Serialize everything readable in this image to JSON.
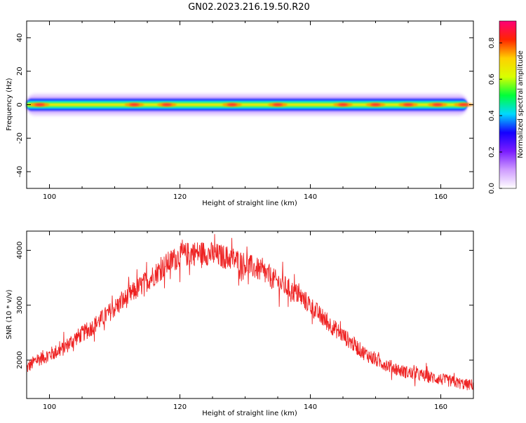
{
  "title": "GN02.2023.216.19.50.R20",
  "chart_data": [
    {
      "type": "heatmap",
      "xlabel": "Height of straight line (km)",
      "ylabel": "Frequency (Hz)",
      "xlim": [
        96.5,
        165
      ],
      "ylim": [
        -50,
        50
      ],
      "x_ticks": [
        100,
        120,
        140,
        160
      ],
      "y_ticks": [
        -40,
        -20,
        0,
        20,
        40
      ],
      "band_center_hz": 0,
      "band_halfwidth_hz": 3.5,
      "band_x_range": [
        96.5,
        164
      ],
      "peak_points_x": [
        98.5,
        113,
        118,
        128,
        135,
        145,
        150,
        155,
        159.5,
        163.5
      ],
      "colorbar": {
        "label": "Normalized spectral amplitude",
        "range": [
          0,
          0.92
        ],
        "ticks": [
          0.0,
          0.2,
          0.4,
          0.6,
          0.8
        ],
        "colors": [
          "#ffffff",
          "#cf9cff",
          "#7a1cff",
          "#1400ff",
          "#00d9ff",
          "#00ff3a",
          "#d9ff00",
          "#ffd000",
          "#ff2500",
          "#ff0077"
        ]
      }
    },
    {
      "type": "line",
      "xlabel": "Height of straight line (km)",
      "ylabel": "SNR (10 * v/v)",
      "xlim": [
        96.5,
        165
      ],
      "ylim": [
        1300,
        4350
      ],
      "x_ticks": [
        100,
        120,
        140,
        160
      ],
      "y_ticks": [
        2000,
        3000,
        4000
      ],
      "color": "#ee2222",
      "series": [
        {
          "x": [
            96.5,
            98,
            100,
            102,
            104,
            106,
            108,
            110,
            112,
            114,
            116,
            118,
            120,
            122,
            124,
            126,
            128,
            130,
            132,
            134,
            136,
            138,
            140,
            142,
            144,
            146,
            148,
            150,
            152,
            154,
            156,
            158,
            160,
            162,
            164,
            165
          ],
          "values": [
            1850,
            2000,
            2100,
            2200,
            2400,
            2550,
            2750,
            2950,
            3150,
            3350,
            3550,
            3750,
            3900,
            3950,
            3950,
            3900,
            3850,
            3750,
            3650,
            3500,
            3350,
            3200,
            3000,
            2750,
            2550,
            2350,
            2150,
            2000,
            1900,
            1800,
            1750,
            1700,
            1650,
            1600,
            1550,
            1550
          ]
        }
      ]
    }
  ]
}
